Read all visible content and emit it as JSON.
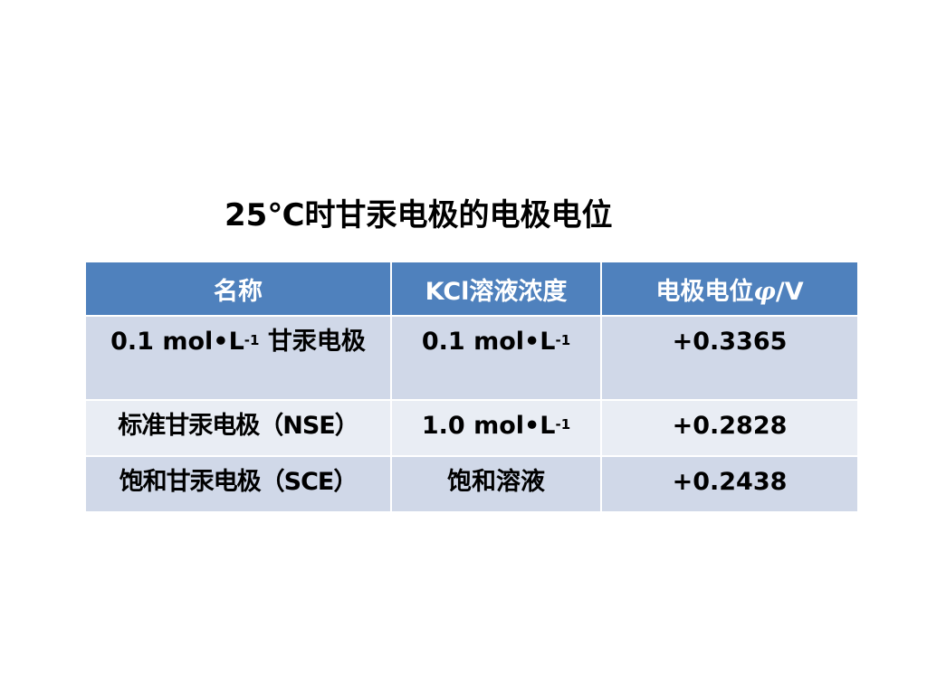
{
  "title": "25℃时甘汞电极的电极电位",
  "table": {
    "headers": {
      "name": "名称",
      "kcl": "KCl溶液浓度",
      "potential_prefix": "电极电位",
      "potential_symbol": "φ",
      "potential_unit": "/V"
    },
    "rows": [
      {
        "name_main": "0.1 mol•L",
        "name_sup": "-1",
        "name_rest": " 甘汞电极",
        "kcl_main": "0.1 mol•L",
        "kcl_sup": "-1",
        "potential": "+0.3365"
      },
      {
        "name": "标准甘汞电极（NSE）",
        "kcl_main": "1.0 mol•L",
        "kcl_sup": "-1",
        "potential": "+0.2828"
      },
      {
        "name": "饱和甘汞电极（SCE）",
        "kcl": "饱和溶液",
        "potential": "+0.2438"
      }
    ]
  }
}
